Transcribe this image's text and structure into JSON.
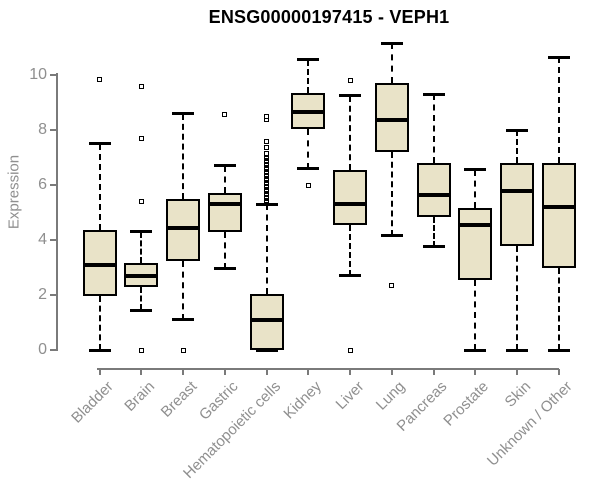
{
  "chart": {
    "title": "ENSG00000197415 - VEPH1",
    "ylabel": "Expression"
  },
  "chart_data": {
    "type": "boxplot",
    "title": "ENSG00000197415 - VEPH1",
    "xlabel": "",
    "ylabel": "Expression",
    "ylim": [
      0,
      10
    ],
    "yticks": [
      0,
      2,
      4,
      6,
      8,
      10
    ],
    "grid": false,
    "legend": null,
    "categories": [
      "Bladder",
      "Brain",
      "Breast",
      "Gastric",
      "Hematopoietic cells",
      "Kidney",
      "Liver",
      "Lung",
      "Pancreas",
      "Prostate",
      "Skin",
      "Unknown / Other"
    ],
    "boxes": [
      {
        "category": "Bladder",
        "low": 0.0,
        "q1": 1.95,
        "median": 3.1,
        "q3": 4.35,
        "high": 7.5,
        "outliers": [
          9.85
        ]
      },
      {
        "category": "Brain",
        "low": 1.45,
        "q1": 2.3,
        "median": 2.7,
        "q3": 3.15,
        "high": 4.3,
        "outliers": [
          9.6,
          7.7,
          5.4,
          0.0
        ]
      },
      {
        "category": "Breast",
        "low": 1.1,
        "q1": 3.25,
        "median": 4.45,
        "q3": 5.5,
        "high": 8.6,
        "outliers": [
          0.0
        ]
      },
      {
        "category": "Gastric",
        "low": 2.95,
        "q1": 4.3,
        "median": 5.3,
        "q3": 5.7,
        "high": 6.7,
        "outliers": [
          8.55
        ]
      },
      {
        "category": "Hematopoietic cells",
        "low": 0.0,
        "q1": 0.0,
        "median": 1.1,
        "q3": 2.05,
        "high": 5.3,
        "outliers": [
          5.4,
          5.45,
          5.5,
          5.55,
          5.6,
          5.65,
          5.7,
          5.75,
          5.8,
          5.85,
          5.9,
          5.95,
          6.0,
          6.05,
          6.1,
          6.15,
          6.2,
          6.25,
          6.3,
          6.35,
          6.4,
          6.45,
          6.5,
          6.55,
          6.6,
          6.65,
          6.7,
          6.75,
          6.8,
          6.85,
          6.9,
          6.95,
          7.0,
          7.05,
          7.1,
          7.15,
          7.35,
          7.6,
          8.4,
          8.5
        ]
      },
      {
        "category": "Kidney",
        "low": 6.6,
        "q1": 8.05,
        "median": 8.65,
        "q3": 9.35,
        "high": 10.55,
        "outliers": [
          6.0
        ]
      },
      {
        "category": "Liver",
        "low": 2.7,
        "q1": 4.55,
        "median": 5.3,
        "q3": 6.55,
        "high": 9.25,
        "outliers": [
          9.8,
          0.0
        ]
      },
      {
        "category": "Lung",
        "low": 4.15,
        "q1": 7.2,
        "median": 8.35,
        "q3": 9.7,
        "high": 11.15,
        "outliers": [
          2.35
        ]
      },
      {
        "category": "Pancreas",
        "low": 3.75,
        "q1": 4.85,
        "median": 5.65,
        "q3": 6.8,
        "high": 9.3,
        "outliers": []
      },
      {
        "category": "Prostate",
        "low": 0.0,
        "q1": 2.55,
        "median": 4.55,
        "q3": 5.15,
        "high": 6.55,
        "outliers": []
      },
      {
        "category": "Skin",
        "low": 0.0,
        "q1": 3.8,
        "median": 5.8,
        "q3": 6.8,
        "high": 8.0,
        "outliers": []
      },
      {
        "category": "Unknown / Other",
        "low": 0.0,
        "q1": 3.0,
        "median": 5.2,
        "q3": 6.8,
        "high": 10.65,
        "outliers": []
      }
    ],
    "colors": {
      "box_fill": "#E9E3C8",
      "box_border": "#000000",
      "median": "#000000",
      "whisker": "#000000",
      "axis": "#7a7a7a",
      "tick_label": "#8f8f8f",
      "title": "#000000",
      "background": "#ffffff"
    }
  }
}
